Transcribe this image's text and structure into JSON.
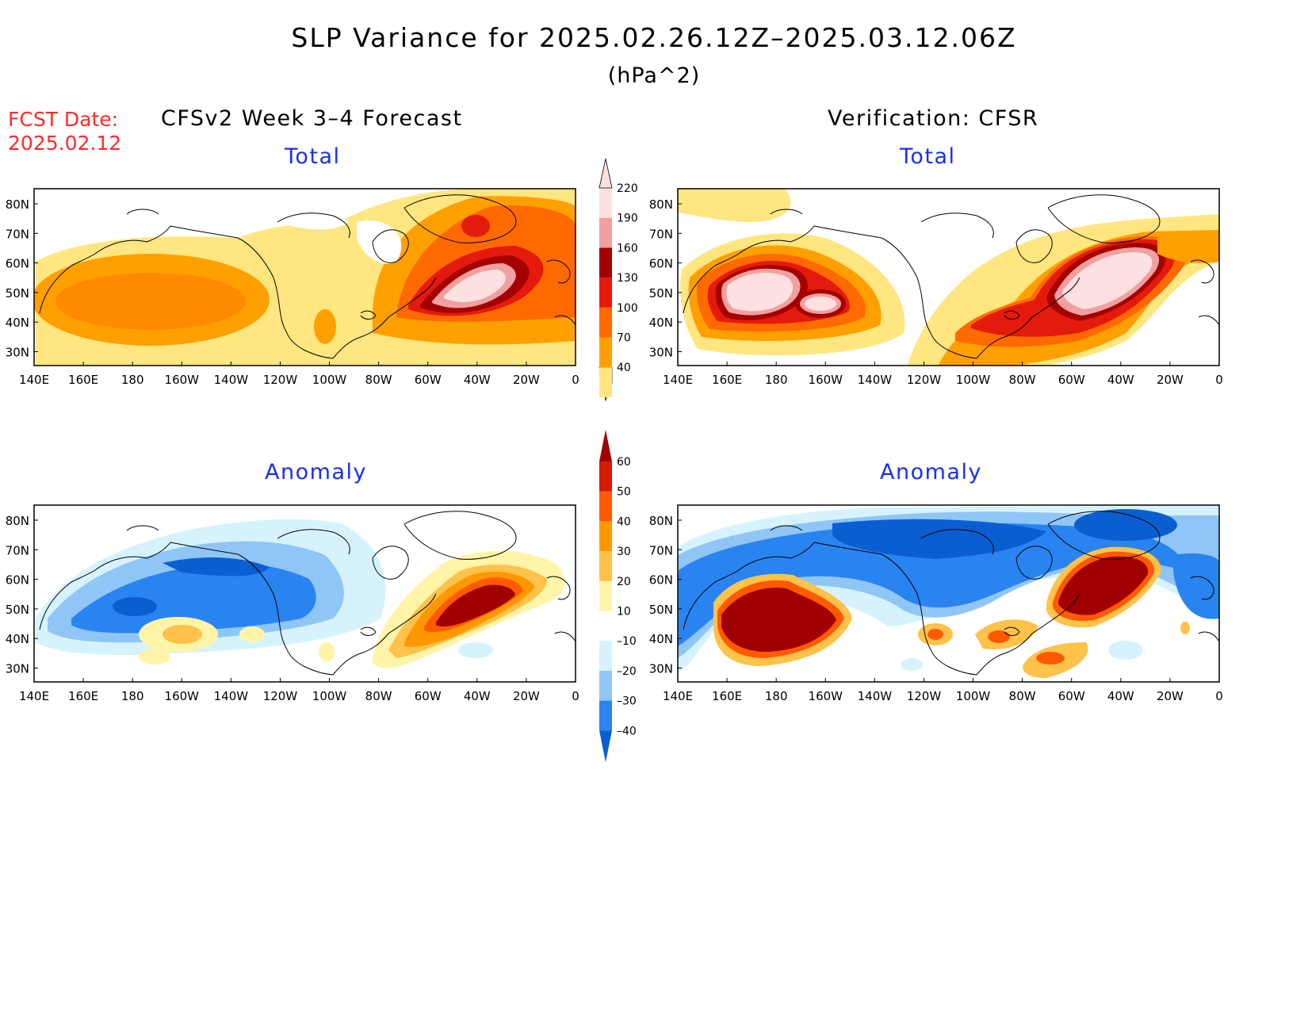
{
  "title": "SLP Variance for 2025.02.26.12Z–2025.03.12.06Z",
  "units": "(hPa^2)",
  "fcst_date_label": "FCST Date:",
  "fcst_date": "2025.02.12",
  "left_header": "CFSv2 Week 3–4 Forecast",
  "right_header": "Verification: CFSR",
  "panels": {
    "forecast_total": {
      "subtitle": "Total"
    },
    "verification_total": {
      "subtitle": "Total"
    },
    "forecast_anomaly": {
      "subtitle": "Anomaly"
    },
    "verification_anomaly": {
      "subtitle": "Anomaly"
    }
  },
  "lat_labels": [
    "80N",
    "70N",
    "60N",
    "50N",
    "40N",
    "30N"
  ],
  "lon_labels": [
    "140E",
    "160E",
    "180",
    "160W",
    "140W",
    "120W",
    "100W",
    "80W",
    "60W",
    "40W",
    "20W",
    "0"
  ],
  "total_colorbar": {
    "labels": [
      "40",
      "70",
      "100",
      "130",
      "160",
      "190",
      "220"
    ],
    "colors": [
      "#ffe680",
      "#ffa000",
      "#ff6a00",
      "#e41a0c",
      "#a50000",
      "#f0a0a0",
      "#fde0e0"
    ]
  },
  "anomaly_colorbar": {
    "labels": [
      "–40",
      "–30",
      "–20",
      "–10",
      "10",
      "20",
      "30",
      "40",
      "50",
      "60"
    ],
    "colors": [
      "#0b5ed0",
      "#2a84f0",
      "#8fc6f5",
      "#d6f3fd",
      "#ffffff",
      "#fff4a8",
      "#ffc24a",
      "#ff9800",
      "#ff5a00",
      "#d61a00",
      "#a00000"
    ]
  }
}
